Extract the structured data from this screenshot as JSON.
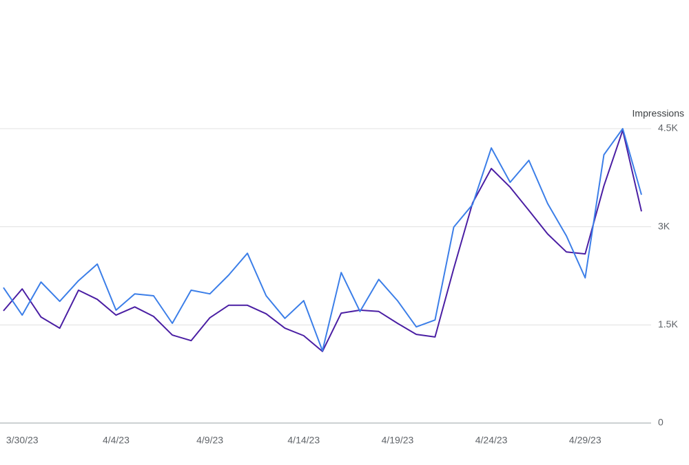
{
  "chart_data": {
    "type": "line",
    "y_axis_label": "Impressions",
    "categories": [
      null,
      "3/30/23",
      null,
      null,
      null,
      null,
      "4/4/23",
      null,
      null,
      null,
      null,
      "4/9/23",
      null,
      null,
      null,
      null,
      "4/14/23",
      null,
      null,
      null,
      null,
      "4/19/23",
      null,
      null,
      null,
      null,
      "4/24/23",
      null,
      null,
      null,
      null,
      "4/29/23",
      null,
      null,
      null
    ],
    "series": [
      {
        "color": "#4a1ea3",
        "values": [
          1715,
          2050,
          1620,
          1450,
          2030,
          1890,
          1650,
          1775,
          1630,
          1345,
          1260,
          1610,
          1800,
          1800,
          1670,
          1450,
          1335,
          1095,
          1680,
          1725,
          1705,
          1525,
          1355,
          1315,
          2365,
          3365,
          3890,
          3605,
          3250,
          2890,
          2615,
          2585,
          3625,
          4475,
          3235
        ]
      },
      {
        "color": "#3b7ee8",
        "values": [
          2070,
          1650,
          2155,
          1860,
          2175,
          2430,
          1725,
          1975,
          1945,
          1525,
          2030,
          1975,
          2260,
          2595,
          1945,
          1600,
          1870,
          1105,
          2300,
          1705,
          2195,
          1870,
          1470,
          1575,
          2995,
          3340,
          4205,
          3680,
          4015,
          3355,
          2860,
          2220,
          4100,
          4500,
          3490
        ]
      }
    ],
    "ylim": [
      0,
      4500
    ],
    "yticks": [
      0,
      {
        "value": 1500,
        "label": "1.5K"
      },
      {
        "value": 3000,
        "label": "3K"
      },
      {
        "value": 4500,
        "label": "4.5K"
      }
    ],
    "grid": true,
    "y_axis_side": "right"
  }
}
